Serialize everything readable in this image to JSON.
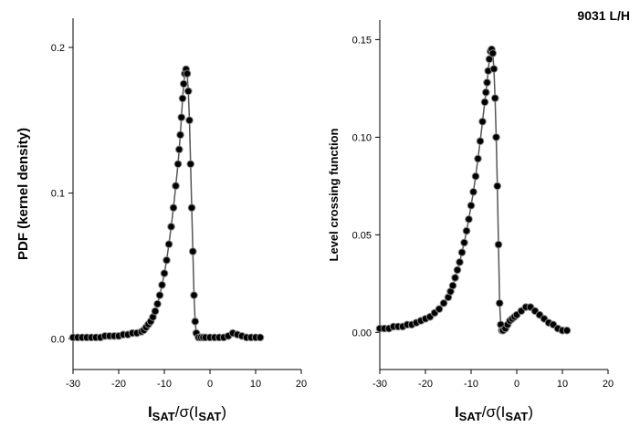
{
  "chart_data": [
    {
      "type": "line",
      "markers": true,
      "ylabel": "PDF (kernel density)",
      "xlabel": [
        "I",
        "SAT",
        "/σ(I",
        "SAT",
        ")"
      ],
      "xlim": [
        -30,
        20
      ],
      "xticks": [
        -30,
        -20,
        -10,
        0,
        10,
        20
      ],
      "ylim": [
        -0.021,
        0.22
      ],
      "yticks": [
        {
          "value": 0,
          "label": "0.0"
        },
        0.1,
        0.2
      ],
      "color": "#000000",
      "line_color": "#555555",
      "marker_edge": "#888888",
      "x": [
        -30,
        -29,
        -28,
        -27,
        -26,
        -25,
        -24,
        -23,
        -22,
        -21,
        -20,
        -19,
        -18,
        -17,
        -16,
        -15,
        -14.5,
        -14,
        -13.5,
        -13,
        -12.5,
        -12,
        -11.5,
        -11,
        -10.5,
        -10,
        -9.5,
        -9,
        -8.5,
        -8,
        -7.5,
        -7,
        -6.75,
        -6.5,
        -6.25,
        -6,
        -5.75,
        -5.5,
        -5.25,
        -5,
        -4.75,
        -4.5,
        -4.25,
        -4,
        -3.75,
        -3.5,
        -3.25,
        -3,
        -2.5,
        -2,
        -1.5,
        -1,
        0,
        1,
        2,
        3,
        4,
        5,
        6,
        7,
        8,
        9,
        10,
        11
      ],
      "values": [
        0.001,
        0.001,
        0.001,
        0.001,
        0.001,
        0.001,
        0.001,
        0.002,
        0.002,
        0.002,
        0.002,
        0.003,
        0.003,
        0.004,
        0.004,
        0.005,
        0.006,
        0.008,
        0.01,
        0.012,
        0.015,
        0.019,
        0.024,
        0.03,
        0.037,
        0.045,
        0.054,
        0.065,
        0.077,
        0.09,
        0.105,
        0.12,
        0.13,
        0.14,
        0.152,
        0.165,
        0.175,
        0.182,
        0.185,
        0.182,
        0.17,
        0.15,
        0.12,
        0.09,
        0.06,
        0.03,
        0.012,
        0.004,
        0.001,
        0.001,
        0.001,
        0.001,
        0.001,
        0.001,
        0.001,
        0.001,
        0.002,
        0.004,
        0.003,
        0.002,
        0.001,
        0.001,
        0.001,
        0.001
      ]
    },
    {
      "type": "line",
      "markers": true,
      "ylabel": "Level crossing function",
      "xlabel": [
        "I",
        "SAT",
        "/σ(I",
        "SAT",
        ")"
      ],
      "annotation": "9031 L/H",
      "xlim": [
        -30,
        20
      ],
      "xticks": [
        -30,
        -20,
        -10,
        0,
        10,
        20
      ],
      "ylim": [
        -0.019,
        0.16
      ],
      "yticks": [
        {
          "value": 0,
          "label": "0.00"
        },
        {
          "value": 0.05,
          "label": "0.05"
        },
        {
          "value": 0.1,
          "label": "0.10"
        },
        {
          "value": 0.15,
          "label": "0.15"
        }
      ],
      "color": "#000000",
      "line_color": "#555555",
      "marker_edge": "#888888",
      "x": [
        -30,
        -29,
        -28,
        -27,
        -26,
        -25,
        -24,
        -23,
        -22,
        -21,
        -20,
        -19,
        -18,
        -17,
        -16,
        -15,
        -14.5,
        -14,
        -13.5,
        -13,
        -12.5,
        -12,
        -11.5,
        -11,
        -10.5,
        -10,
        -9.5,
        -9,
        -8.5,
        -8,
        -7.5,
        -7,
        -6.75,
        -6.5,
        -6.25,
        -6,
        -5.75,
        -5.5,
        -5.25,
        -5,
        -4.75,
        -4.5,
        -4.25,
        -4,
        -3.75,
        -3.5,
        -3.25,
        -3,
        -2.5,
        -2,
        -1.5,
        -1,
        -0.5,
        0,
        1,
        2,
        3,
        4,
        5,
        6,
        7,
        8,
        9,
        10,
        11
      ],
      "values": [
        0.002,
        0.002,
        0.002,
        0.003,
        0.003,
        0.003,
        0.004,
        0.004,
        0.005,
        0.006,
        0.007,
        0.008,
        0.01,
        0.012,
        0.015,
        0.018,
        0.021,
        0.024,
        0.028,
        0.032,
        0.036,
        0.041,
        0.046,
        0.052,
        0.058,
        0.065,
        0.072,
        0.08,
        0.089,
        0.098,
        0.108,
        0.118,
        0.123,
        0.128,
        0.134,
        0.14,
        0.144,
        0.145,
        0.143,
        0.135,
        0.12,
        0.1,
        0.075,
        0.045,
        0.015,
        0.004,
        0.001,
        0.001,
        0.002,
        0.004,
        0.006,
        0.007,
        0.008,
        0.009,
        0.011,
        0.013,
        0.013,
        0.011,
        0.009,
        0.007,
        0.005,
        0.004,
        0.002,
        0.001,
        0.001
      ]
    }
  ]
}
